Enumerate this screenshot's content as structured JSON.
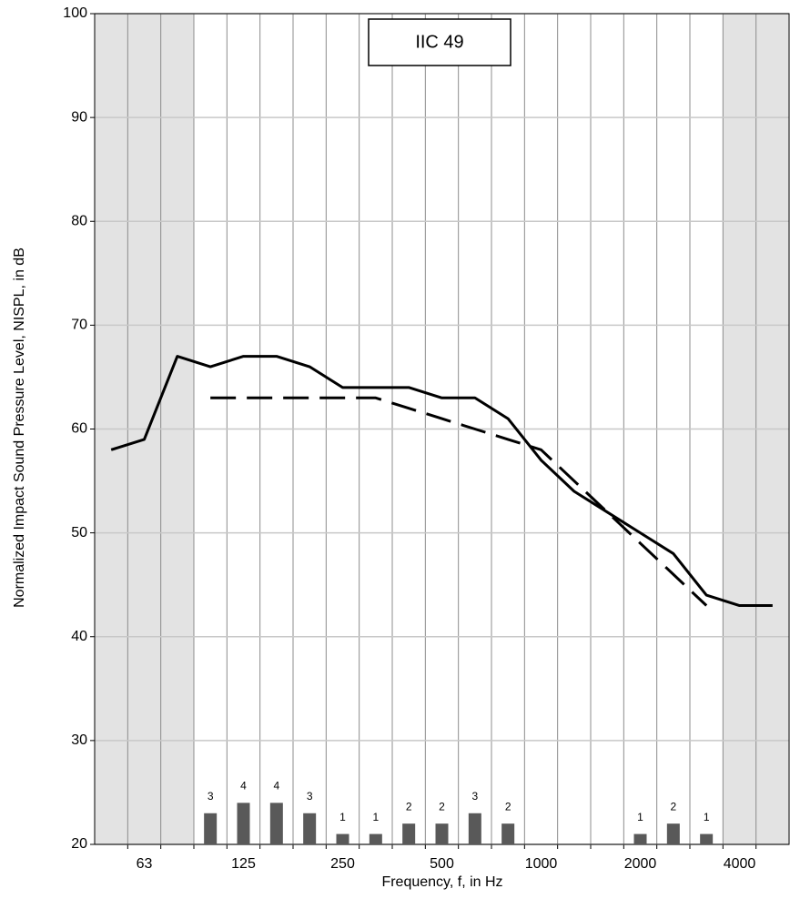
{
  "chart_data": {
    "type": "line",
    "x_label": "Frequency, f, in Hz",
    "y_label": "Normalized Impact Sound Pressure Level, NISPL, in dB",
    "annotation": "IIC 49",
    "categories": [
      null,
      "63",
      null,
      null,
      "125",
      null,
      null,
      "250",
      null,
      null,
      "500",
      null,
      null,
      "1000",
      null,
      null,
      "2000",
      null,
      null,
      "4000",
      null
    ],
    "series": [
      {
        "type": "line",
        "color": "#000000",
        "dash": "solid",
        "values": [
          58,
          59,
          67,
          66,
          67,
          67,
          66,
          64,
          64,
          64,
          63,
          63,
          61,
          57,
          54,
          52,
          50,
          48,
          44,
          43,
          43
        ]
      },
      {
        "type": "line",
        "color": "#000000",
        "dash": "dashed",
        "values": [
          null,
          null,
          null,
          63,
          63,
          63,
          63,
          63,
          63,
          62,
          61,
          60,
          59,
          58,
          55,
          52,
          49,
          46,
          43,
          null,
          null
        ]
      },
      {
        "type": "bar",
        "color": "#595959",
        "values": [
          null,
          null,
          null,
          3,
          4,
          4,
          3,
          1,
          1,
          2,
          2,
          3,
          2,
          null,
          null,
          null,
          1,
          2,
          1,
          null,
          null
        ]
      }
    ],
    "ylim": [
      20,
      100
    ],
    "yticks": [
      20,
      30,
      40,
      50,
      60,
      70,
      80,
      90,
      100
    ],
    "grid": true
  }
}
